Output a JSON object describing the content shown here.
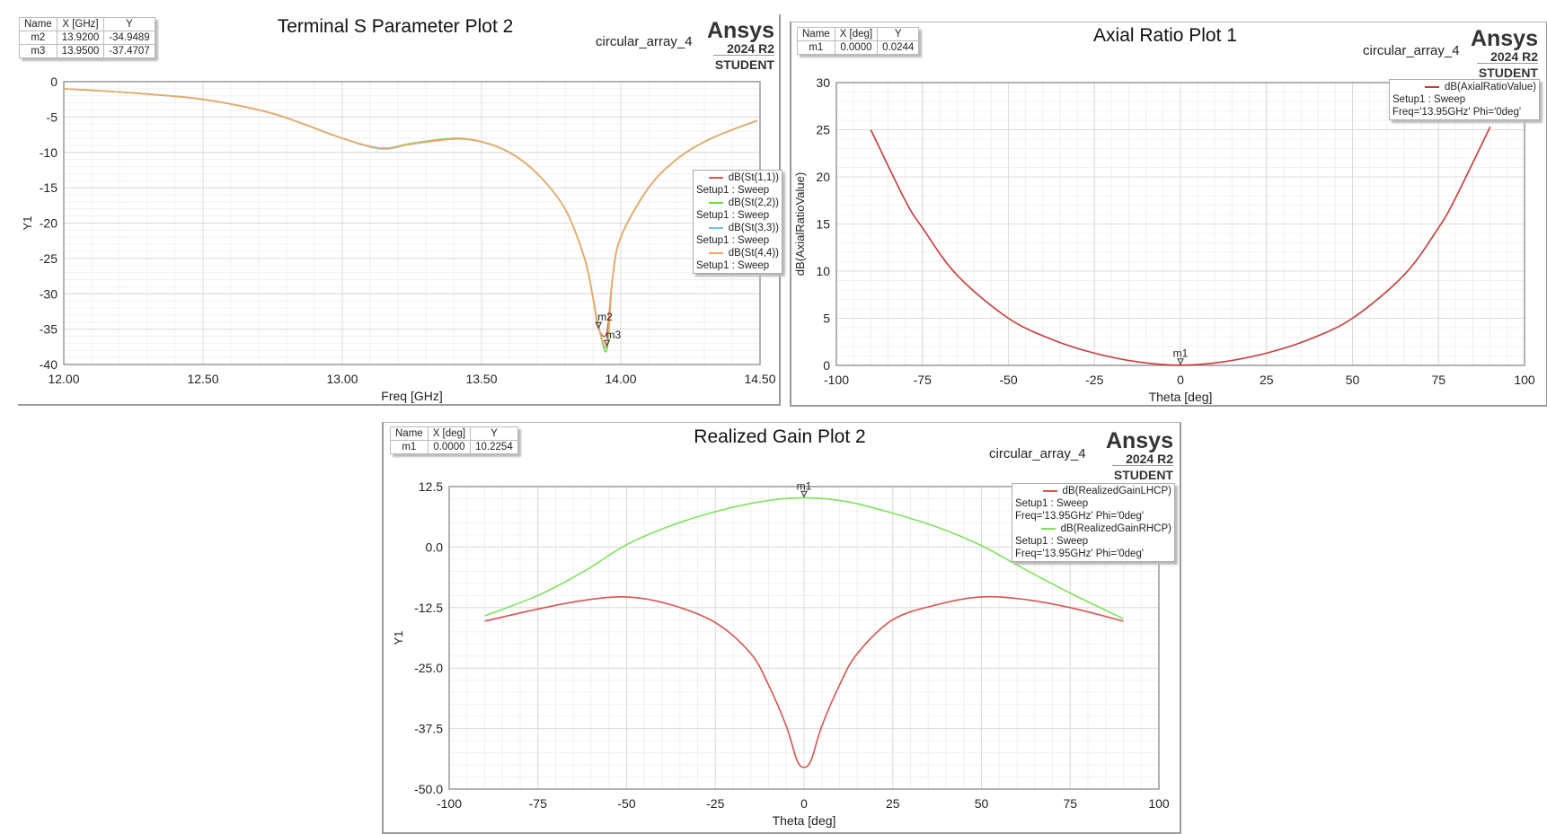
{
  "chart_data": [
    {
      "type": "line",
      "title": "Terminal S Parameter Plot 2",
      "design": "circular_array_4",
      "logo": {
        "brand": "Ansys",
        "version": "2024 R2",
        "edition": "STUDENT"
      },
      "xlabel": "Freq [GHz]",
      "ylabel": "Y1",
      "xlim": [
        12.0,
        14.5
      ],
      "ylim": [
        -40,
        0
      ],
      "xticks": [
        "12.00",
        "12.50",
        "13.00",
        "13.50",
        "14.00",
        "14.50"
      ],
      "xtick_values": [
        12.0,
        12.5,
        13.0,
        13.5,
        14.0,
        14.5
      ],
      "yticks": [
        "0",
        "-5",
        "-10",
        "-15",
        "-20",
        "-25",
        "-30",
        "-35",
        "-40"
      ],
      "ytick_values": [
        0,
        -5,
        -10,
        -15,
        -20,
        -25,
        -30,
        -35,
        -40
      ],
      "grid": true,
      "legend_position": "right",
      "markers_table": {
        "headers": [
          "Name",
          "X [GHz]",
          "Y"
        ],
        "rows": [
          [
            "m2",
            "13.9200",
            "-34.9489"
          ],
          [
            "m3",
            "13.9500",
            "-37.4707"
          ]
        ]
      },
      "markers": [
        {
          "name": "m2",
          "x": 13.92,
          "y": -34.9489
        },
        {
          "name": "m3",
          "x": 13.95,
          "y": -37.4707
        }
      ],
      "series": [
        {
          "name": "dB(St(1,1))",
          "setup": "Setup1 : Sweep",
          "color": "#d9534f",
          "x": [
            12.0,
            12.25,
            12.5,
            12.75,
            13.0,
            13.14,
            13.25,
            13.4,
            13.5,
            13.6,
            13.7,
            13.8,
            13.87,
            13.9,
            13.92,
            13.95,
            13.97,
            14.0,
            14.1,
            14.2,
            14.3,
            14.4,
            14.49
          ],
          "y": [
            -1.0,
            -1.6,
            -2.5,
            -4.5,
            -8.0,
            -9.4,
            -8.8,
            -8.1,
            -8.5,
            -10.0,
            -13.0,
            -18.0,
            -25.0,
            -30.5,
            -34.9,
            -35.5,
            -28.0,
            -22.0,
            -15.0,
            -11.0,
            -8.5,
            -6.8,
            -5.5
          ]
        },
        {
          "name": "dB(St(2,2))",
          "setup": "Setup1 : Sweep",
          "color": "#66e04a",
          "x": [
            12.0,
            12.25,
            12.5,
            12.75,
            13.0,
            13.14,
            13.25,
            13.4,
            13.5,
            13.6,
            13.7,
            13.8,
            13.87,
            13.9,
            13.92,
            13.95,
            13.97,
            14.0,
            14.1,
            14.2,
            14.3,
            14.4,
            14.49
          ],
          "y": [
            -1.0,
            -1.6,
            -2.5,
            -4.5,
            -8.0,
            -9.4,
            -8.7,
            -8.0,
            -8.5,
            -10.0,
            -13.0,
            -18.0,
            -25.0,
            -30.5,
            -34.5,
            -38.0,
            -28.0,
            -22.0,
            -15.0,
            -11.0,
            -8.5,
            -6.8,
            -5.5
          ]
        },
        {
          "name": "dB(St(3,3))",
          "setup": "Setup1 : Sweep",
          "color": "#6cc6f0",
          "x": [
            12.0,
            12.25,
            12.5,
            12.75,
            13.0,
            13.14,
            13.25,
            13.4,
            13.5,
            13.6,
            13.7,
            13.8,
            13.87,
            13.9,
            13.92,
            13.95,
            13.97,
            14.0,
            14.1,
            14.2,
            14.3,
            14.4,
            14.49
          ],
          "y": [
            -1.0,
            -1.6,
            -2.5,
            -4.5,
            -8.0,
            -9.5,
            -8.8,
            -8.1,
            -8.5,
            -10.0,
            -13.0,
            -18.0,
            -25.0,
            -30.5,
            -34.6,
            -37.4,
            -28.0,
            -22.0,
            -15.0,
            -11.0,
            -8.5,
            -6.8,
            -5.5
          ]
        },
        {
          "name": "dB(St(4,4))",
          "setup": "Setup1 : Sweep",
          "color": "#f0a860",
          "x": [
            12.0,
            12.25,
            12.5,
            12.75,
            13.0,
            13.14,
            13.25,
            13.4,
            13.5,
            13.6,
            13.7,
            13.8,
            13.87,
            13.9,
            13.92,
            13.95,
            13.97,
            14.0,
            14.1,
            14.2,
            14.3,
            14.4,
            14.49
          ],
          "y": [
            -1.0,
            -1.6,
            -2.5,
            -4.5,
            -8.0,
            -9.4,
            -8.8,
            -8.1,
            -8.5,
            -10.0,
            -13.0,
            -18.0,
            -25.0,
            -30.5,
            -34.7,
            -37.3,
            -28.0,
            -22.0,
            -15.0,
            -11.0,
            -8.5,
            -6.8,
            -5.5
          ]
        }
      ]
    },
    {
      "type": "line",
      "title": "Axial Ratio Plot 1",
      "design": "circular_array_4",
      "logo": {
        "brand": "Ansys",
        "version": "2024 R2",
        "edition": "STUDENT"
      },
      "xlabel": "Theta [deg]",
      "ylabel": "dB(AxialRatioValue)",
      "xlim": [
        -100,
        100
      ],
      "ylim": [
        0,
        30
      ],
      "xticks": [
        "-100",
        "-75",
        "-50",
        "-25",
        "0",
        "25",
        "50",
        "75",
        "100"
      ],
      "xtick_values": [
        -100,
        -75,
        -50,
        -25,
        0,
        25,
        50,
        75,
        100
      ],
      "yticks": [
        "30",
        "25",
        "20",
        "15",
        "10",
        "5",
        "0"
      ],
      "ytick_values": [
        30,
        25,
        20,
        15,
        10,
        5,
        0
      ],
      "grid": true,
      "legend_position": "top-right",
      "markers_table": {
        "headers": [
          "Name",
          "X [deg]",
          "Y"
        ],
        "rows": [
          [
            "m1",
            "0.0000",
            "0.0244"
          ]
        ]
      },
      "markers": [
        {
          "name": "m1",
          "x": 0,
          "y": 0.0244
        }
      ],
      "series": [
        {
          "name": "dB(AxialRatioValue)",
          "setup": "Setup1 : Sweep",
          "extra": "Freq='13.95GHz' Phi='0deg'",
          "color": "#c83a3a",
          "x": [
            -90,
            -80,
            -75,
            -65,
            -50,
            -37,
            -25,
            -12,
            0,
            12,
            25,
            37,
            50,
            65,
            75,
            80,
            90
          ],
          "y": [
            25.0,
            17.5,
            14.6,
            9.6,
            5.0,
            2.7,
            1.3,
            0.35,
            0.02,
            0.35,
            1.3,
            2.7,
            5.0,
            9.6,
            14.6,
            17.8,
            25.3
          ]
        }
      ]
    },
    {
      "type": "line",
      "title": "Realized Gain Plot 2",
      "design": "circular_array_4",
      "logo": {
        "brand": "Ansys",
        "version": "2024 R2",
        "edition": "STUDENT"
      },
      "xlabel": "Theta [deg]",
      "ylabel": "Y1",
      "xlim": [
        -100,
        100
      ],
      "ylim": [
        -50,
        12.5
      ],
      "xticks": [
        "-100",
        "-75",
        "-50",
        "-25",
        "0",
        "25",
        "50",
        "75",
        "100"
      ],
      "xtick_values": [
        -100,
        -75,
        -50,
        -25,
        0,
        25,
        50,
        75,
        100
      ],
      "yticks": [
        "12.5",
        "0.0",
        "-12.5",
        "-25.0",
        "-37.5",
        "-50.0"
      ],
      "ytick_values": [
        12.5,
        0,
        -12.5,
        -25,
        -37.5,
        -50
      ],
      "grid": true,
      "legend_position": "top-right",
      "markers_table": {
        "headers": [
          "Name",
          "X [deg]",
          "Y"
        ],
        "rows": [
          [
            "m1",
            "0.0000",
            "10.2254"
          ]
        ]
      },
      "markers": [
        {
          "name": "m1",
          "x": 0,
          "y": 10.2254
        }
      ],
      "series": [
        {
          "name": "dB(RealizedGainLHCP)",
          "setup": "Setup1 : Sweep",
          "extra": "Freq='13.95GHz' Phi='0deg'",
          "color": "#d9534f",
          "x": [
            -90,
            -75,
            -62,
            -50,
            -38,
            -25,
            -15,
            -10,
            -5,
            -2,
            0,
            2,
            5,
            10,
            15,
            25,
            38,
            50,
            62,
            75,
            90
          ],
          "y": [
            -15.3,
            -12.8,
            -11.0,
            -10.3,
            -11.8,
            -15.6,
            -22.0,
            -28.5,
            -37.0,
            -44.0,
            -45.5,
            -44.0,
            -37.0,
            -28.5,
            -22.0,
            -15.0,
            -11.8,
            -10.3,
            -10.8,
            -12.5,
            -15.3
          ]
        },
        {
          "name": "dB(RealizedGainRHCP)",
          "setup": "Setup1 : Sweep",
          "extra": "Freq='13.95GHz' Phi='0deg'",
          "color": "#7de35a",
          "x": [
            -90,
            -75,
            -62,
            -50,
            -38,
            -25,
            -12,
            0,
            12,
            25,
            38,
            50,
            62,
            75,
            90
          ],
          "y": [
            -14.2,
            -10.0,
            -5.0,
            0.5,
            4.3,
            7.3,
            9.4,
            10.2,
            9.4,
            7.0,
            4.0,
            0.3,
            -4.5,
            -9.5,
            -14.8
          ]
        }
      ]
    }
  ]
}
